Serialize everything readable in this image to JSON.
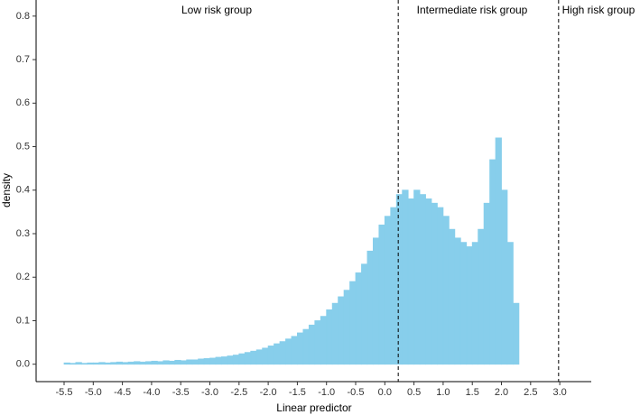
{
  "chart_data": {
    "type": "histogram",
    "x_label": "Linear predictor",
    "y_label": "density",
    "color": "#87CEEB",
    "bins": [
      -5.5,
      -5.4,
      -5.3,
      -5.2,
      -5.1,
      -5.0,
      -4.9,
      -4.8,
      -4.7,
      -4.6,
      -4.5,
      -4.4,
      -4.3,
      -4.2,
      -4.1,
      -4.0,
      -3.9,
      -3.8,
      -3.7,
      -3.6,
      -3.5,
      -3.4,
      -3.3,
      -3.2,
      -3.1,
      -3.0,
      -2.9,
      -2.8,
      -2.7,
      -2.6,
      -2.5,
      -2.4,
      -2.3,
      -2.2,
      -2.1,
      -2.0,
      -1.9,
      -1.8,
      -1.7,
      -1.6,
      -1.5,
      -1.4,
      -1.3,
      -1.2,
      -1.1,
      -1.0,
      -0.9,
      -0.8,
      -0.7,
      -0.6,
      -0.5,
      -0.4,
      -0.3,
      -0.2,
      -0.1,
      0.0,
      0.1,
      0.2,
      0.3,
      0.4,
      0.5,
      0.6,
      0.7,
      0.8,
      0.9,
      1.0,
      1.1,
      1.2,
      1.3,
      1.4,
      1.5,
      1.6,
      1.7,
      1.8,
      1.9,
      2.0,
      2.1,
      2.2,
      2.3,
      2.4,
      2.5,
      2.6,
      2.7,
      2.8,
      2.9,
      3.0
    ],
    "values": [
      0.003,
      0.002,
      0.004,
      0.002,
      0.003,
      0.003,
      0.004,
      0.003,
      0.004,
      0.005,
      0.004,
      0.005,
      0.006,
      0.005,
      0.006,
      0.007,
      0.006,
      0.008,
      0.007,
      0.009,
      0.008,
      0.01,
      0.01,
      0.012,
      0.013,
      0.014,
      0.016,
      0.017,
      0.019,
      0.021,
      0.024,
      0.027,
      0.03,
      0.033,
      0.037,
      0.042,
      0.047,
      0.052,
      0.058,
      0.064,
      0.072,
      0.08,
      0.09,
      0.1,
      0.11,
      0.125,
      0.14,
      0.155,
      0.17,
      0.19,
      0.21,
      0.23,
      0.26,
      0.29,
      0.32,
      0.34,
      0.36,
      0.39,
      0.4,
      0.38,
      0.4,
      0.39,
      0.38,
      0.37,
      0.36,
      0.34,
      0.31,
      0.29,
      0.28,
      0.27,
      0.28,
      0.31,
      0.37,
      0.47,
      0.52,
      0.4,
      0.28,
      0.14,
      0,
      0,
      0,
      0,
      0,
      0,
      0
    ],
    "xlim": [
      -5.98,
      3.54
    ],
    "ylim": [
      -0.04,
      0.837
    ],
    "xticks": [
      -5.5,
      {
        "value": -5,
        "label": "-5.0"
      },
      -4.5,
      {
        "value": -4,
        "label": "-4.0"
      },
      -3.5,
      {
        "value": -3,
        "label": "-3.0"
      },
      -2.5,
      {
        "value": -2,
        "label": "-2.0"
      },
      -1.5,
      {
        "value": -1,
        "label": "-1.0"
      },
      -0.5,
      {
        "value": 0,
        "label": "0.0"
      },
      0.5,
      {
        "value": 1,
        "label": "1.0"
      },
      1.5,
      {
        "value": 2,
        "label": "2.0"
      },
      2.5,
      {
        "value": 3,
        "label": "3.0"
      }
    ],
    "yticks": [
      {
        "value": 0,
        "label": "0.0"
      },
      0.1,
      0.2,
      0.3,
      0.4,
      0.5,
      0.6,
      0.7,
      0.8
    ],
    "vlines": [
      0.23,
      2.98
    ],
    "annotations": [
      "Low risk group",
      "Intermediate risk group",
      "High risk group"
    ]
  }
}
